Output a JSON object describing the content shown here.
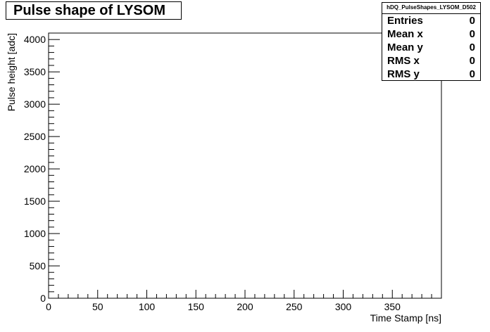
{
  "chart_data": {
    "type": "scatter",
    "title": "Pulse shape of LYSOM",
    "histogram_name": "hDQ_PulseShapes_LYSOM_D502",
    "xlabel": "Time Stamp [ns]",
    "ylabel": "Pulse height [adc]",
    "xlim": [
      0,
      400
    ],
    "ylim": [
      0,
      4100
    ],
    "x_ticks": [
      0,
      50,
      100,
      150,
      200,
      250,
      300,
      350
    ],
    "y_ticks": [
      0,
      500,
      1000,
      1500,
      2000,
      2500,
      3000,
      3500,
      4000
    ],
    "x": [],
    "y": [],
    "grid": false,
    "stats": [
      {
        "label": "Entries",
        "value": "0"
      },
      {
        "label": "Mean x",
        "value": "0"
      },
      {
        "label": "Mean y",
        "value": "0"
      },
      {
        "label": "RMS x",
        "value": "0"
      },
      {
        "label": "RMS y",
        "value": "0"
      }
    ]
  }
}
